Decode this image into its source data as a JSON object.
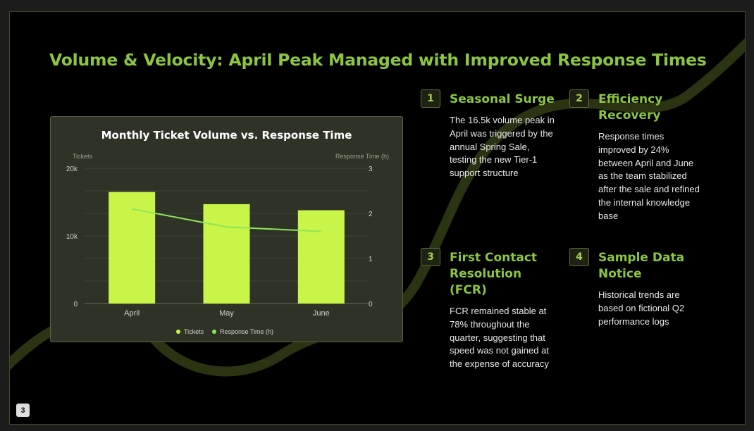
{
  "slide": {
    "title": "Volume & Velocity: April Peak Managed with Improved Response Times",
    "page_number": "3"
  },
  "chart_data": {
    "type": "bar",
    "title": "Monthly Ticket Volume vs. Response Time",
    "categories": [
      "April",
      "May",
      "June"
    ],
    "series": [
      {
        "name": "Tickets",
        "type": "bar",
        "axis": "left",
        "values": [
          16500,
          14700,
          13800
        ],
        "color": "#c8f547"
      },
      {
        "name": "Response Time (h)",
        "type": "line",
        "axis": "right",
        "values": [
          2.1,
          1.7,
          1.6
        ],
        "color": "#8ee65a"
      }
    ],
    "ylabel": "Tickets",
    "ylabel_right": "Response Time (h)",
    "ylim": [
      0,
      20000
    ],
    "ylim_right": [
      0,
      3
    ],
    "y_ticks": [
      "0",
      "10k",
      "20k"
    ],
    "y_ticks_right": [
      "0",
      "1",
      "2",
      "3"
    ],
    "grid": true,
    "legend": "bottom-center"
  },
  "cards": [
    {
      "number": "1",
      "title": "Seasonal Surge",
      "body": "The 16.5k volume peak in April was triggered by the annual Spring Sale, testing the new Tier-1 support structure"
    },
    {
      "number": "2",
      "title": "Efficiency Recovery",
      "body": "Response times improved by 24% between April and June as the team stabilized after the sale and refined the internal knowledge base"
    },
    {
      "number": "3",
      "title": "First Contact Resolution (FCR)",
      "body": "FCR remained stable at 78% throughout the quarter, suggesting that speed was not gained at the expense of accuracy"
    },
    {
      "number": "4",
      "title": "Sample Data Notice",
      "body": "Historical trends are based on fictional Q2 performance logs"
    }
  ],
  "colors": {
    "accent": "#8cc63f",
    "bar": "#c8f547",
    "line": "#8ee65a",
    "background": "#000000",
    "chart_panel": "#2f3327"
  }
}
